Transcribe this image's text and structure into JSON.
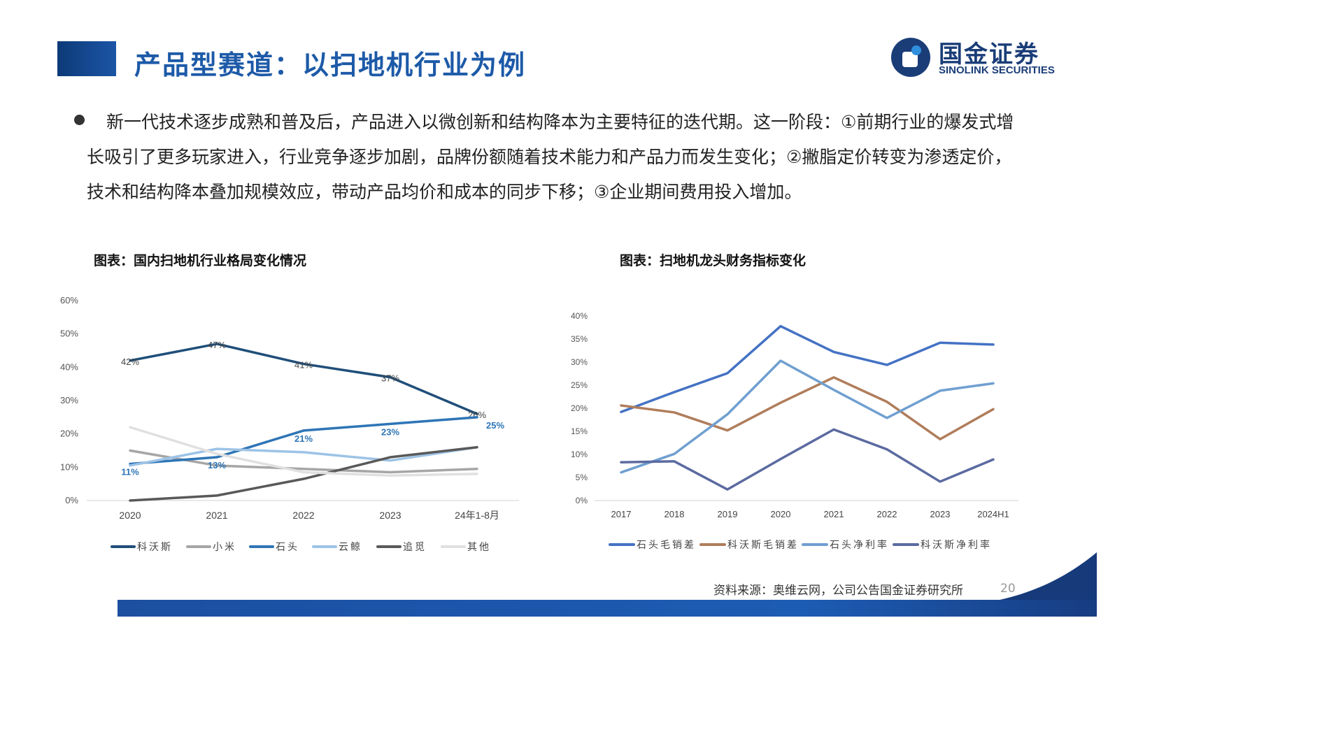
{
  "header": {
    "title": "产品型赛道：以扫地机行业为例"
  },
  "logo": {
    "name_cn": "国金证券",
    "name_en": "SINOLINK SECURITIES",
    "color": "#1a3d78"
  },
  "intro": {
    "text": "新一代技术逐步成熟和普及后，产品进入以微创新和结构降本为主要特征的迭代期。这一阶段：①前期行业的爆发式增长吸引了更多玩家进入，行业竞争逐步加剧，品牌份额随着技术能力和产品力而发生变化；②撇脂定价转变为渗透定价，技术和结构降本叠加规模效应，带动产品均价和成本的同步下移；③企业期间费用投入增加。"
  },
  "charts": {
    "left_title": "图表：国内扫地机行业格局变化情况",
    "right_title": "图表：扫地机龙头财务指标变化"
  },
  "chart_data": [
    {
      "type": "line",
      "title": "图表：国内扫地机行业格局变化情况",
      "categories": [
        "2020",
        "2021",
        "2022",
        "2023",
        "24年1-8月"
      ],
      "ylim": [
        0,
        60
      ],
      "yticks": [
        "0%",
        "10%",
        "20%",
        "30%",
        "40%",
        "50%",
        "60%"
      ],
      "grid": false,
      "legend_position": "bottom",
      "series": [
        {
          "name": "科沃斯",
          "color": "#1f4e79",
          "values": [
            42,
            47,
            41,
            37,
            26
          ],
          "labels": [
            "42%",
            "47%",
            "41%",
            "37%",
            "26%"
          ]
        },
        {
          "name": "小米",
          "color": "#a6a6a6",
          "values": [
            15,
            10.5,
            9.5,
            8.5,
            9.5
          ],
          "labels": []
        },
        {
          "name": "石头",
          "color": "#2e75b6",
          "values": [
            11,
            13,
            21,
            23,
            25
          ],
          "labels": [
            "11%",
            "13%",
            "21%",
            "23%",
            "25%"
          ]
        },
        {
          "name": "云鲸",
          "color": "#9dc3e6",
          "values": [
            10.5,
            15.5,
            14.5,
            12,
            16
          ],
          "labels": []
        },
        {
          "name": "追觅",
          "color": "#595959",
          "values": [
            0,
            1.5,
            6.5,
            13,
            16
          ],
          "labels": []
        },
        {
          "name": "其他",
          "color": "#e0e0e0",
          "values": [
            22,
            14,
            8.5,
            7.5,
            8
          ],
          "labels": []
        }
      ]
    },
    {
      "type": "line",
      "title": "图表：扫地机龙头财务指标变化",
      "categories": [
        "2017",
        "2018",
        "2019",
        "2020",
        "2021",
        "2022",
        "2023",
        "2024H1"
      ],
      "ylim": [
        0,
        40
      ],
      "yticks": [
        "0%",
        "5%",
        "10%",
        "15%",
        "20%",
        "25%",
        "30%",
        "35%",
        "40%"
      ],
      "grid": false,
      "legend_position": "bottom",
      "series": [
        {
          "name": "石头毛销差",
          "color": "#4472c4",
          "values": [
            19.2,
            23.5,
            27.6,
            37.8,
            32.2,
            29.4,
            34.2,
            33.8
          ]
        },
        {
          "name": "科沃斯毛销差",
          "color": "#b07d5b",
          "values": [
            20.6,
            19.1,
            15.2,
            21.2,
            26.7,
            21.4,
            13.3,
            19.8
          ]
        },
        {
          "name": "石头净利率",
          "color": "#6f9fd0",
          "values": [
            6.1,
            10.1,
            18.7,
            30.3,
            24.0,
            17.9,
            23.8,
            25.4
          ]
        },
        {
          "name": "科沃斯净利率",
          "color": "#5b6aa0",
          "values": [
            8.3,
            8.5,
            2.4,
            9.0,
            15.4,
            11.1,
            4.1,
            8.9
          ]
        }
      ]
    }
  ],
  "footer": {
    "source": "资料来源：奥维云网，公司公告国金证券研究所",
    "page_number": "20",
    "bar_color": "#1c4fa0"
  }
}
